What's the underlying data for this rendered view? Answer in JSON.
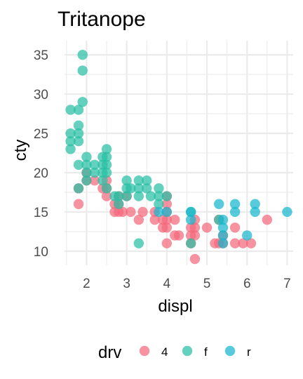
{
  "chart_data": {
    "type": "scatter",
    "title": "Tritanope",
    "xlabel": "displ",
    "ylabel": "cty",
    "xlim": [
      1.45,
      7.15
    ],
    "ylim": [
      8.2,
      36.8
    ],
    "x_ticks": [
      2,
      3,
      4,
      5,
      6,
      7
    ],
    "y_ticks": [
      10,
      15,
      20,
      25,
      30,
      35
    ],
    "grid": true,
    "legend": {
      "title": "drv",
      "position": "bottom"
    },
    "series": [
      {
        "name": "4",
        "color": "#f4687c",
        "points": [
          [
            1.8,
            18
          ],
          [
            1.8,
            16
          ],
          [
            2.0,
            20
          ],
          [
            2.0,
            19
          ],
          [
            2.2,
            19
          ],
          [
            2.4,
            18
          ],
          [
            2.5,
            19
          ],
          [
            2.5,
            18
          ],
          [
            2.5,
            17
          ],
          [
            2.7,
            16
          ],
          [
            2.7,
            15
          ],
          [
            2.8,
            17
          ],
          [
            2.8,
            16
          ],
          [
            2.8,
            15
          ],
          [
            2.9,
            15
          ],
          [
            3.0,
            17
          ],
          [
            3.1,
            15
          ],
          [
            3.3,
            14
          ],
          [
            3.4,
            15
          ],
          [
            3.7,
            15
          ],
          [
            3.7,
            14
          ],
          [
            3.9,
            14
          ],
          [
            3.9,
            13
          ],
          [
            4.0,
            17
          ],
          [
            4.0,
            16
          ],
          [
            4.0,
            15
          ],
          [
            4.0,
            14
          ],
          [
            4.0,
            13
          ],
          [
            4.0,
            11
          ],
          [
            4.2,
            14
          ],
          [
            4.2,
            12
          ],
          [
            4.3,
            12
          ],
          [
            4.6,
            13
          ],
          [
            4.6,
            12
          ],
          [
            4.6,
            11
          ],
          [
            4.7,
            14
          ],
          [
            4.7,
            13
          ],
          [
            4.7,
            12
          ],
          [
            4.7,
            9
          ],
          [
            5.0,
            13
          ],
          [
            5.2,
            11
          ],
          [
            5.3,
            14
          ],
          [
            5.3,
            11
          ],
          [
            5.4,
            12
          ],
          [
            5.4,
            11
          ],
          [
            5.7,
            13
          ],
          [
            5.7,
            11
          ],
          [
            5.9,
            11
          ],
          [
            6.1,
            11
          ],
          [
            6.5,
            14
          ]
        ]
      },
      {
        "name": "f",
        "color": "#27bfa3",
        "points": [
          [
            1.6,
            28
          ],
          [
            1.6,
            25
          ],
          [
            1.6,
            23
          ],
          [
            1.6,
            24
          ],
          [
            1.8,
            28
          ],
          [
            1.8,
            26
          ],
          [
            1.8,
            25
          ],
          [
            1.8,
            24
          ],
          [
            1.8,
            21
          ],
          [
            1.8,
            18
          ],
          [
            1.9,
            35
          ],
          [
            1.9,
            33
          ],
          [
            1.9,
            29
          ],
          [
            2.0,
            22
          ],
          [
            2.0,
            21
          ],
          [
            2.0,
            20
          ],
          [
            2.0,
            19
          ],
          [
            2.2,
            21
          ],
          [
            2.2,
            20
          ],
          [
            2.4,
            21
          ],
          [
            2.4,
            22
          ],
          [
            2.4,
            20
          ],
          [
            2.4,
            19
          ],
          [
            2.5,
            23
          ],
          [
            2.5,
            22
          ],
          [
            2.5,
            21
          ],
          [
            2.5,
            20
          ],
          [
            2.5,
            18
          ],
          [
            2.7,
            17
          ],
          [
            2.8,
            17
          ],
          [
            2.8,
            16
          ],
          [
            3.0,
            19
          ],
          [
            3.0,
            18
          ],
          [
            3.0,
            17
          ],
          [
            3.1,
            18
          ],
          [
            3.3,
            19
          ],
          [
            3.3,
            18
          ],
          [
            3.3,
            17
          ],
          [
            3.3,
            11
          ],
          [
            3.5,
            19
          ],
          [
            3.5,
            18
          ],
          [
            3.6,
            17
          ],
          [
            3.8,
            18
          ],
          [
            3.8,
            17
          ],
          [
            3.8,
            16
          ],
          [
            4.0,
            17
          ],
          [
            4.6,
            15
          ],
          [
            4.6,
            11
          ],
          [
            5.3,
            14
          ]
        ]
      },
      {
        "name": "r",
        "color": "#16b7cd",
        "points": [
          [
            3.8,
            15
          ],
          [
            4.0,
            15
          ],
          [
            4.6,
            15
          ],
          [
            4.6,
            14
          ],
          [
            5.3,
            16
          ],
          [
            5.4,
            14
          ],
          [
            5.4,
            13
          ],
          [
            5.4,
            12
          ],
          [
            5.4,
            11
          ],
          [
            5.7,
            16
          ],
          [
            5.7,
            15
          ],
          [
            6.0,
            12
          ],
          [
            6.2,
            16
          ],
          [
            6.2,
            15
          ],
          [
            7.0,
            15
          ]
        ]
      }
    ]
  }
}
